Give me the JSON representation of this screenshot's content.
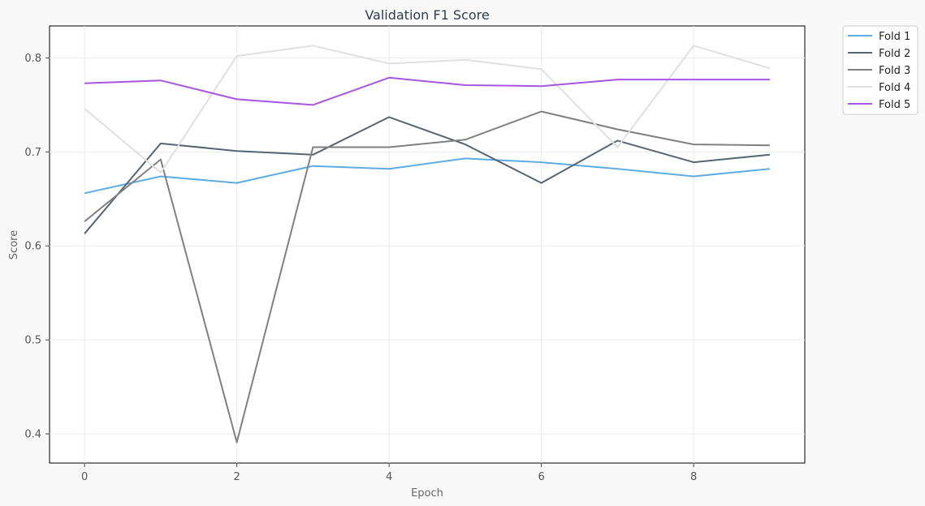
{
  "chart_data": {
    "type": "line",
    "title": "Validation F1 Score",
    "xlabel": "Epoch",
    "ylabel": "Score",
    "x": [
      0,
      1,
      2,
      3,
      4,
      5,
      6,
      7,
      8,
      9
    ],
    "xlim": [
      -0.46,
      9.46
    ],
    "ylim": [
      0.369,
      0.834
    ],
    "xticks": [
      0,
      2,
      4,
      6,
      8
    ],
    "yticks": [
      0.4,
      0.5,
      0.6,
      0.7,
      0.8
    ],
    "grid": true,
    "legend_position": "outside-top-right",
    "series": [
      {
        "name": "Fold 1",
        "color": "#5dade2",
        "values": [
          0.656,
          0.674,
          0.667,
          0.685,
          0.682,
          0.693,
          0.689,
          0.682,
          0.674,
          0.682
        ]
      },
      {
        "name": "Fold 2",
        "color": "#566573",
        "values": [
          0.613,
          0.709,
          0.701,
          0.697,
          0.737,
          0.708,
          0.667,
          0.712,
          0.689,
          0.697
        ]
      },
      {
        "name": "Fold 3",
        "color": "#808080",
        "values": [
          0.626,
          0.692,
          0.391,
          0.705,
          0.705,
          0.713,
          0.743,
          0.724,
          0.708,
          0.707
        ]
      },
      {
        "name": "Fold 4",
        "color": "#e0e0e0",
        "values": [
          0.746,
          0.678,
          0.802,
          0.813,
          0.794,
          0.798,
          0.788,
          0.705,
          0.813,
          0.789
        ]
      },
      {
        "name": "Fold 5",
        "color": "#a855e0",
        "values": [
          0.773,
          0.776,
          0.756,
          0.75,
          0.779,
          0.771,
          0.77,
          0.777,
          0.777,
          0.777
        ]
      }
    ]
  }
}
